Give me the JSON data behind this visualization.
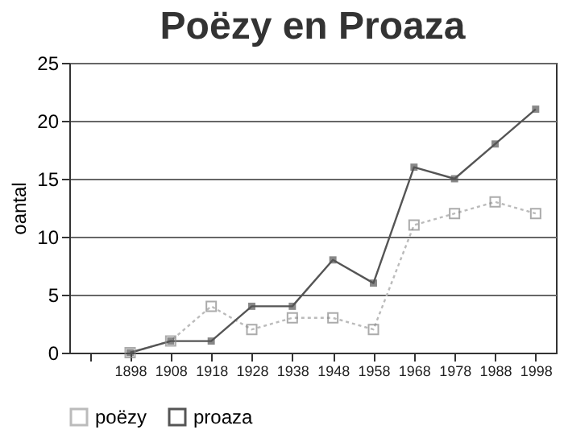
{
  "chart_data": {
    "type": "line",
    "title": "Poëzy en Proaza",
    "ylabel": "oantal",
    "categories": [
      null,
      "1898",
      "1908",
      "1918",
      "1928",
      "1938",
      "1948",
      "1958",
      "1968",
      "1978",
      "1988",
      "1998"
    ],
    "series": [
      {
        "name": "poëzy",
        "color": "#bbbbbb",
        "line_style": "dotted",
        "values": [
          null,
          0,
          1,
          4,
          2,
          3,
          3,
          2,
          11,
          12,
          13,
          12
        ]
      },
      {
        "name": "proaza",
        "color": "#555555",
        "line_style": "solid",
        "values": [
          null,
          0,
          1,
          1,
          4,
          4,
          8,
          6,
          16,
          15,
          18,
          21
        ]
      }
    ],
    "ylim": [
      0,
      25
    ],
    "yticks": [
      0,
      5,
      10,
      15,
      20,
      25
    ],
    "grid": "y",
    "legend": "bottom",
    "marker": "square"
  }
}
